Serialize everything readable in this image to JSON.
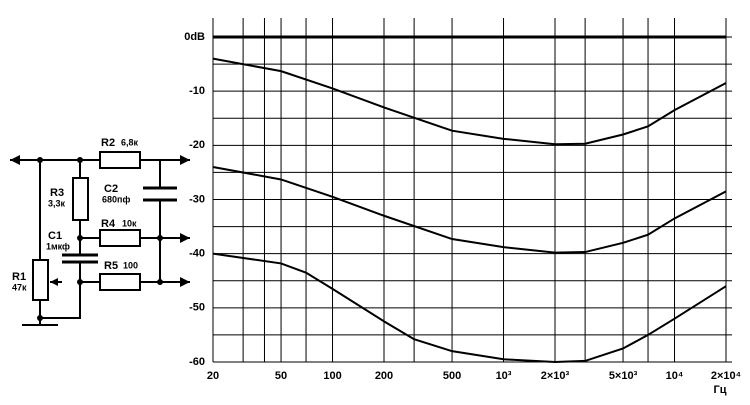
{
  "circuit": {
    "labels": [
      "R2",
      "6,8к",
      "R3",
      "3,3к",
      "C2",
      "680пф",
      "C1",
      "1мкф",
      "R4",
      "10к",
      "R5",
      "100",
      "R1",
      "47к"
    ]
  },
  "chart_data": {
    "type": "line",
    "xlabel": "Гц",
    "log_x": true,
    "grid": true,
    "color": "#000000",
    "xlim": [
      20,
      20000
    ],
    "xticks": [
      20,
      50,
      100,
      200,
      500,
      {
        "value": 1000,
        "label": "10³"
      },
      {
        "value": 2000,
        "label": "2×10³"
      },
      {
        "value": 5000,
        "label": "5×10³"
      },
      {
        "value": 10000,
        "label": "10⁴"
      },
      {
        "value": 20000,
        "label": "2×10⁴"
      }
    ],
    "xminor": [
      30,
      40,
      70,
      300,
      3000,
      7000
    ],
    "ylim": [
      -60,
      0
    ],
    "yticks": [
      {
        "value": 0,
        "label": "0dB"
      },
      -10,
      -20,
      -30,
      -40,
      -50,
      -60
    ],
    "yminor": [
      -5,
      -15,
      -25,
      -35,
      -45,
      -55
    ],
    "series": [
      {
        "x": [
          20,
          20000
        ],
        "values": [
          0,
          0
        ]
      },
      {
        "x": [
          20,
          50,
          100,
          200,
          500,
          1000,
          2000,
          3000,
          5000,
          7000,
          10000,
          20000
        ],
        "values": [
          -4,
          -6.3,
          -9.5,
          -13,
          -17.3,
          -18.8,
          -19.8,
          -19.7,
          -18,
          -16.5,
          -13.5,
          -8.5
        ]
      },
      {
        "x": [
          20,
          50,
          100,
          200,
          500,
          1000,
          2000,
          3000,
          5000,
          7000,
          10000,
          20000
        ],
        "values": [
          -24,
          -26.3,
          -29.5,
          -33,
          -37.3,
          -38.8,
          -39.8,
          -39.7,
          -38,
          -36.5,
          -33.5,
          -28.5
        ]
      },
      {
        "x": [
          20,
          50,
          70,
          100,
          200,
          300,
          500,
          1000,
          2000,
          3000,
          5000,
          7000,
          10000,
          20000
        ],
        "values": [
          -40,
          -41.8,
          -43.5,
          -46.5,
          -52.5,
          -55.8,
          -58,
          -59.5,
          -60,
          -59.8,
          -57.5,
          -55,
          -52,
          -46
        ]
      }
    ]
  }
}
